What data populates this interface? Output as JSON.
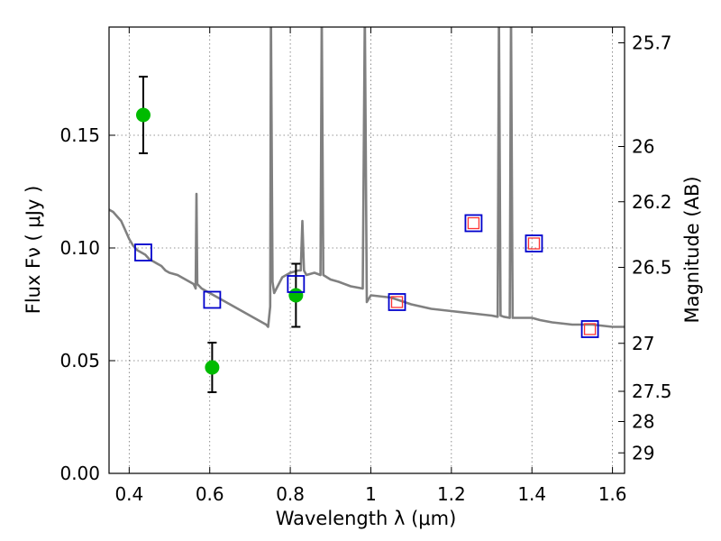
{
  "chart_data": {
    "type": "scatter",
    "xlabel": "Wavelength  λ (μm)",
    "ylabel": "Flux  Fν  ( μJy )",
    "y2label": "Magnitude (AB)",
    "xlim": [
      0.35,
      1.63
    ],
    "ylim": [
      0.0,
      0.198
    ],
    "grid": true,
    "x_ticks": [
      0.4,
      0.6,
      0.8,
      1.0,
      1.2,
      1.4,
      1.6
    ],
    "x_tick_labels": [
      "0.4",
      "0.6",
      "0.8",
      "1",
      "1.2",
      "1.4",
      "1.6"
    ],
    "y_ticks": [
      0.0,
      0.05,
      0.1,
      0.15
    ],
    "y_tick_labels": [
      "0.00",
      "0.05",
      "0.10",
      "0.15"
    ],
    "y2_ticks": [
      {
        "label": "25.7",
        "flux": 0.191
      },
      {
        "label": "26",
        "flux": 0.145
      },
      {
        "label": "26.2",
        "flux": 0.1205
      },
      {
        "label": "26.5",
        "flux": 0.0914
      },
      {
        "label": "27",
        "flux": 0.0577
      },
      {
        "label": "27.5",
        "flux": 0.0364
      },
      {
        "label": "28",
        "flux": 0.023
      },
      {
        "label": "29",
        "flux": 0.0091
      }
    ],
    "series": [
      {
        "kind": "line",
        "color": "#808080",
        "points": [
          [
            0.35,
            0.117
          ],
          [
            0.36,
            0.116
          ],
          [
            0.37,
            0.114
          ],
          [
            0.38,
            0.112
          ],
          [
            0.39,
            0.108
          ],
          [
            0.4,
            0.104
          ],
          [
            0.41,
            0.101
          ],
          [
            0.42,
            0.099
          ],
          [
            0.43,
            0.098
          ],
          [
            0.44,
            0.097
          ],
          [
            0.45,
            0.095
          ],
          [
            0.46,
            0.094
          ],
          [
            0.47,
            0.093
          ],
          [
            0.48,
            0.092
          ],
          [
            0.49,
            0.09
          ],
          [
            0.5,
            0.089
          ],
          [
            0.52,
            0.088
          ],
          [
            0.54,
            0.086
          ],
          [
            0.56,
            0.084
          ],
          [
            0.565,
            0.082
          ],
          [
            0.567,
            0.124
          ],
          [
            0.569,
            0.084
          ],
          [
            0.58,
            0.082
          ],
          [
            0.6,
            0.08
          ],
          [
            0.62,
            0.078
          ],
          [
            0.65,
            0.075
          ],
          [
            0.67,
            0.073
          ],
          [
            0.7,
            0.07
          ],
          [
            0.72,
            0.068
          ],
          [
            0.74,
            0.066
          ],
          [
            0.745,
            0.065
          ],
          [
            0.75,
            0.074
          ],
          [
            0.752,
            0.205
          ],
          [
            0.756,
            0.085
          ],
          [
            0.76,
            0.08
          ],
          [
            0.78,
            0.087
          ],
          [
            0.8,
            0.089
          ],
          [
            0.82,
            0.09
          ],
          [
            0.826,
            0.09
          ],
          [
            0.83,
            0.112
          ],
          [
            0.834,
            0.09
          ],
          [
            0.84,
            0.088
          ],
          [
            0.86,
            0.089
          ],
          [
            0.875,
            0.088
          ],
          [
            0.878,
            0.205
          ],
          [
            0.882,
            0.088
          ],
          [
            0.9,
            0.086
          ],
          [
            0.92,
            0.085
          ],
          [
            0.95,
            0.083
          ],
          [
            0.98,
            0.082
          ],
          [
            0.985,
            0.205
          ],
          [
            0.99,
            0.076
          ],
          [
            1.0,
            0.079
          ],
          [
            1.05,
            0.078
          ],
          [
            1.1,
            0.075
          ],
          [
            1.15,
            0.073
          ],
          [
            1.2,
            0.072
          ],
          [
            1.25,
            0.071
          ],
          [
            1.3,
            0.07
          ],
          [
            1.315,
            0.0695
          ],
          [
            1.318,
            0.205
          ],
          [
            1.322,
            0.07
          ],
          [
            1.33,
            0.0695
          ],
          [
            1.345,
            0.069
          ],
          [
            1.348,
            0.205
          ],
          [
            1.352,
            0.069
          ],
          [
            1.36,
            0.069
          ],
          [
            1.4,
            0.069
          ],
          [
            1.42,
            0.068
          ],
          [
            1.45,
            0.067
          ],
          [
            1.5,
            0.066
          ],
          [
            1.55,
            0.066
          ],
          [
            1.6,
            0.065
          ],
          [
            1.63,
            0.065
          ]
        ]
      },
      {
        "kind": "scatter",
        "marker": "circle",
        "color": "#00bb00",
        "points": [
          {
            "x": 0.435,
            "y": 0.159,
            "yerr": 0.017
          },
          {
            "x": 0.606,
            "y": 0.047,
            "yerr": 0.011
          },
          {
            "x": 0.814,
            "y": 0.079,
            "yerr": 0.014
          }
        ]
      },
      {
        "kind": "scatter",
        "marker": "square",
        "color": "#0000cc",
        "points": [
          {
            "x": 0.435,
            "y": 0.098
          },
          {
            "x": 0.606,
            "y": 0.077
          },
          {
            "x": 0.814,
            "y": 0.084
          },
          {
            "x": 1.065,
            "y": 0.076
          },
          {
            "x": 1.255,
            "y": 0.111
          },
          {
            "x": 1.405,
            "y": 0.102
          },
          {
            "x": 1.544,
            "y": 0.064
          }
        ]
      },
      {
        "kind": "scatter",
        "marker": "square",
        "color": "#ff3333",
        "points": [
          {
            "x": 1.065,
            "y": 0.076
          },
          {
            "x": 1.255,
            "y": 0.111
          },
          {
            "x": 1.405,
            "y": 0.102
          },
          {
            "x": 1.544,
            "y": 0.064
          }
        ]
      }
    ]
  }
}
